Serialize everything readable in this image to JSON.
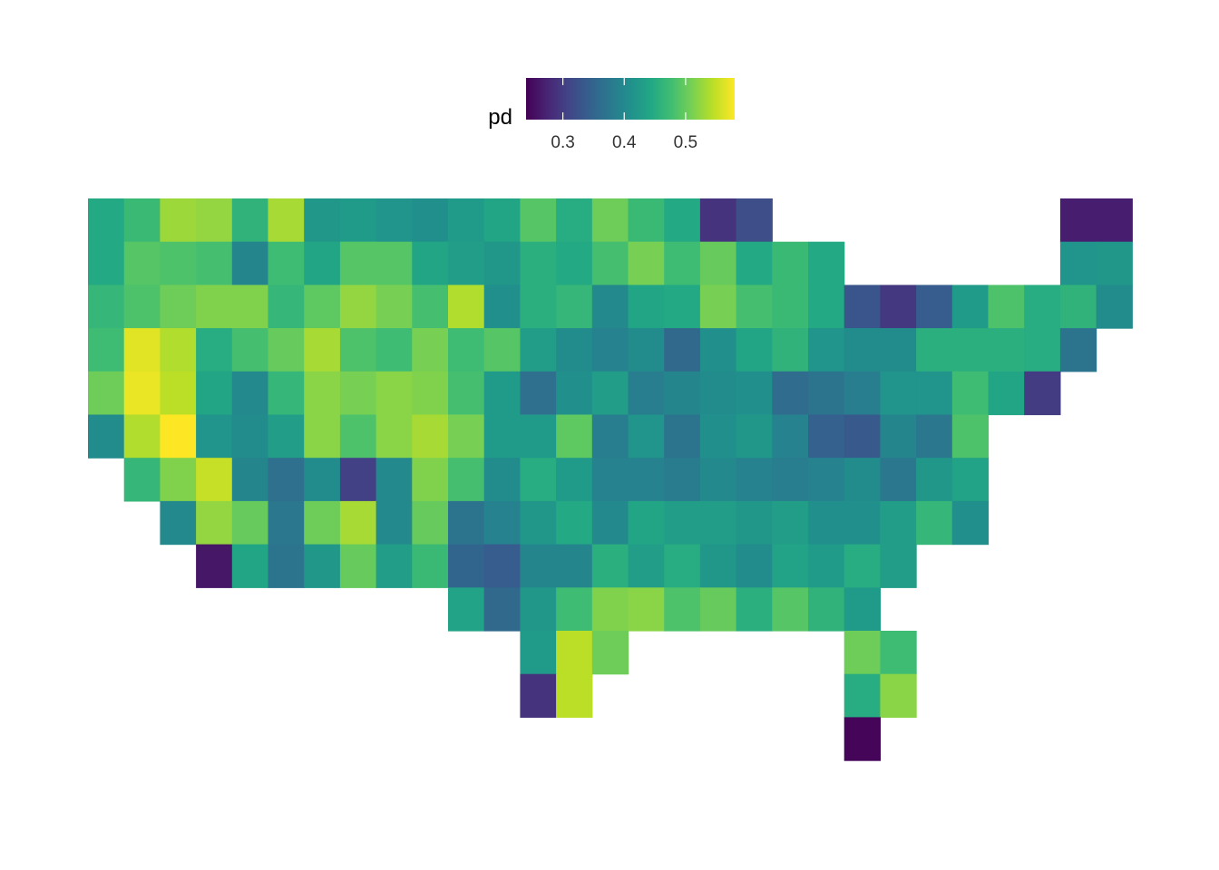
{
  "chart_data": {
    "type": "heatmap",
    "title": "",
    "xlabel": "",
    "ylabel": "",
    "grid": false,
    "legend": {
      "title": "pd",
      "placement": "top",
      "range": [
        0.24,
        0.58
      ],
      "ticks": [
        0.3,
        0.4,
        0.5
      ],
      "tick_labels": [
        "0.3",
        "0.4",
        "0.5"
      ]
    },
    "colorscale": "viridis",
    "n_cols": 29,
    "rows": [
      {
        "start": 0,
        "values": [
          0.445,
          0.47,
          0.53,
          0.525,
          0.46,
          0.535,
          0.42,
          0.425,
          0.415,
          0.41,
          0.425,
          0.44,
          0.49,
          0.45,
          0.505,
          0.47,
          0.445,
          0.29,
          0.32,
          null,
          null,
          null,
          null,
          null,
          null,
          null,
          null,
          0.268,
          0.268
        ]
      },
      {
        "start": 0,
        "values": [
          0.445,
          0.49,
          0.485,
          0.48,
          0.395,
          0.475,
          0.44,
          0.49,
          0.49,
          0.44,
          0.43,
          0.42,
          0.455,
          0.445,
          0.48,
          0.51,
          0.475,
          0.5,
          0.445,
          0.47,
          0.445,
          null,
          null,
          null,
          null,
          null,
          null,
          0.415,
          0.42
        ]
      },
      {
        "start": 0,
        "values": [
          0.465,
          0.485,
          0.505,
          0.515,
          0.515,
          0.465,
          0.495,
          0.525,
          0.51,
          0.48,
          0.54,
          0.41,
          0.455,
          0.465,
          0.4,
          0.44,
          0.445,
          0.51,
          0.48,
          0.47,
          0.445,
          0.33,
          0.295,
          0.34,
          0.425,
          0.485,
          0.45,
          0.46,
          0.405
        ]
      },
      {
        "start": 0,
        "values": [
          0.475,
          0.565,
          0.54,
          0.45,
          0.48,
          0.5,
          0.535,
          0.485,
          0.475,
          0.51,
          0.475,
          0.49,
          0.43,
          0.405,
          0.39,
          0.405,
          0.355,
          0.41,
          0.44,
          0.46,
          0.415,
          0.405,
          0.405,
          0.455,
          0.455,
          0.455,
          0.45,
          0.37,
          null
        ]
      },
      {
        "start": 0,
        "values": [
          0.505,
          0.57,
          0.545,
          0.44,
          0.4,
          0.465,
          0.52,
          0.51,
          0.52,
          0.515,
          0.48,
          0.425,
          0.365,
          0.41,
          0.43,
          0.385,
          0.395,
          0.405,
          0.41,
          0.36,
          0.37,
          0.385,
          0.415,
          0.415,
          0.475,
          0.44,
          0.3,
          null,
          null
        ]
      },
      {
        "start": 0,
        "values": [
          0.405,
          0.54,
          0.58,
          0.415,
          0.405,
          0.43,
          0.52,
          0.485,
          0.52,
          0.535,
          0.51,
          0.425,
          0.425,
          0.495,
          0.385,
          0.415,
          0.37,
          0.41,
          0.42,
          0.39,
          0.345,
          0.335,
          0.395,
          0.375,
          0.485,
          null,
          null,
          null,
          null
        ]
      },
      {
        "start": 1,
        "values": [
          0.465,
          0.515,
          0.55,
          0.395,
          0.365,
          0.405,
          0.305,
          0.4,
          0.515,
          0.48,
          0.405,
          0.45,
          0.425,
          0.39,
          0.39,
          0.38,
          0.4,
          0.39,
          0.385,
          0.39,
          0.405,
          0.375,
          0.42,
          0.435,
          null,
          null,
          null,
          null
        ]
      },
      {
        "start": 2,
        "values": [
          0.4,
          0.525,
          0.5,
          0.375,
          0.505,
          0.535,
          0.4,
          0.5,
          0.37,
          0.39,
          0.42,
          0.445,
          0.4,
          0.44,
          0.43,
          0.43,
          0.42,
          0.43,
          0.41,
          0.41,
          0.43,
          0.465,
          0.41,
          null,
          null,
          null,
          null
        ]
      },
      {
        "start": 3,
        "values": [
          0.26,
          0.44,
          0.37,
          0.42,
          0.5,
          0.43,
          0.47,
          0.35,
          0.34,
          0.395,
          0.395,
          0.455,
          0.43,
          0.45,
          0.42,
          0.405,
          0.435,
          0.425,
          0.45,
          0.43,
          null,
          null,
          null,
          null,
          null,
          null
        ]
      },
      {
        "start": 10,
        "values": [
          0.435,
          0.355,
          0.42,
          0.475,
          0.515,
          0.52,
          0.485,
          0.5,
          0.455,
          0.49,
          0.46,
          0.425
        ]
      },
      {
        "start": 12,
        "values": [
          0.425,
          0.545,
          0.505,
          null,
          null,
          null,
          null,
          null,
          null,
          0.505,
          0.475
        ]
      },
      {
        "start": 12,
        "values": [
          0.29,
          0.545,
          null,
          null,
          null,
          null,
          null,
          null,
          null,
          0.45,
          0.52
        ]
      },
      {
        "start": 21,
        "values": [
          0.245
        ]
      }
    ]
  }
}
